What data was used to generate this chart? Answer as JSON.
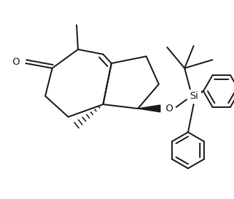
{
  "bg_color": "#ffffff",
  "line_color": "#1a1a1a",
  "line_width": 1.5,
  "fig_width": 3.36,
  "fig_height": 2.86,
  "dpi": 100,
  "xlim": [
    0,
    336
  ],
  "ylim": [
    0,
    286
  ]
}
